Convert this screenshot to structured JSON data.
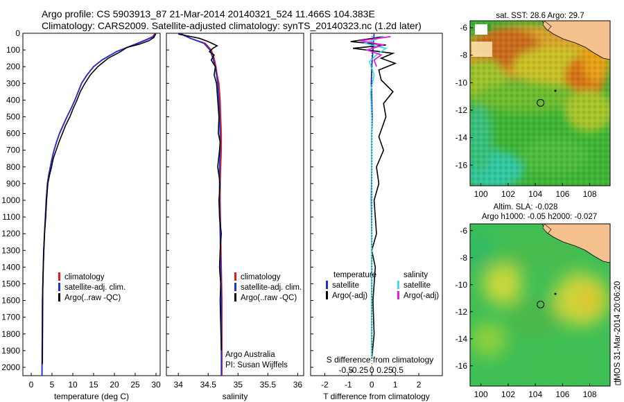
{
  "header": {
    "line1": "Argo profile: CS 5903913_87 21-Mar-2014 20140321_524 11.466S 104.383E",
    "line2": "Climatology: CARS2009. Satellite-adjusted climatology: synTS_20140323.nc (1.2d later)"
  },
  "side_stamp": "IMOS 31-Mar-2014 20:06:20",
  "colors": {
    "climatology": "#e41a1c",
    "satellite": "#1f2fd6",
    "argo": "#000000",
    "satellite_diff": "#3fe0e8",
    "argo_sal_diff": "#e020e0",
    "land": "#f5c28f"
  },
  "chart_data": [
    {
      "type": "line",
      "panel": "temperature",
      "xlabel": "temperature (deg C)",
      "ylabel": "",
      "xlim": [
        -2,
        31
      ],
      "ylim": [
        2050,
        0
      ],
      "xticks": [
        0,
        5,
        10,
        15,
        20,
        25,
        30
      ],
      "yticks": [
        0,
        100,
        200,
        300,
        400,
        500,
        600,
        700,
        800,
        900,
        1000,
        1100,
        1200,
        1300,
        1400,
        1500,
        1600,
        1700,
        1800,
        1900,
        2000
      ],
      "legend": [
        "climatology",
        "satellite-adj. clim.",
        "Argo(..raw -QC)"
      ],
      "legend_position": "lower-middle",
      "series": [
        {
          "name": "climatology",
          "color_key": "climatology",
          "x": [
            29.8,
            29.2,
            27.5,
            24.5,
            20.5,
            17,
            15,
            13.4,
            12.1,
            11.3,
            10.5,
            9.6,
            8.6,
            7.7,
            6.8,
            6.1,
            5.5,
            5.0,
            4.6,
            4.2,
            3.9,
            3.6,
            3.4,
            3.2,
            3.0,
            2.9,
            2.8,
            2.7,
            2.6
          ],
          "y": [
            0,
            20,
            40,
            70,
            110,
            160,
            200,
            250,
            300,
            350,
            400,
            450,
            500,
            550,
            600,
            650,
            700,
            750,
            800,
            850,
            900,
            1000,
            1100,
            1200,
            1300,
            1400,
            1500,
            1600,
            2050
          ]
        },
        {
          "name": "satellite-adj. clim.",
          "color_key": "satellite",
          "x": [
            30.0,
            29.4,
            27.7,
            24.6,
            20.5,
            17,
            15,
            13.4,
            12.1,
            11.3,
            10.5,
            9.6,
            8.6,
            7.7,
            6.8,
            6.1,
            5.5,
            5.0,
            4.6,
            4.2,
            3.9,
            3.6,
            3.4,
            3.2,
            3.0,
            2.9,
            2.8,
            2.7,
            2.6
          ],
          "y": [
            0,
            20,
            40,
            70,
            110,
            160,
            200,
            250,
            300,
            350,
            400,
            450,
            500,
            550,
            600,
            650,
            700,
            750,
            800,
            850,
            900,
            1000,
            1100,
            1200,
            1300,
            1400,
            1500,
            1600,
            2050
          ]
        },
        {
          "name": "Argo(..raw -QC)",
          "color_key": "argo",
          "x": [
            29.9,
            29.5,
            28.3,
            26.0,
            23.0,
            21.5,
            18.5,
            16,
            14.2,
            12.9,
            11.8,
            11.0,
            10.1,
            9.3,
            8.3,
            7.5,
            6.7,
            6.0,
            5.3,
            4.9,
            4.4,
            4.0,
            3.7,
            3.5,
            3.2,
            3.05,
            2.9,
            2.8,
            2.7
          ],
          "y": [
            5,
            25,
            45,
            65,
            85,
            110,
            150,
            200,
            250,
            300,
            350,
            400,
            450,
            500,
            550,
            600,
            650,
            700,
            750,
            800,
            850,
            900,
            1000,
            1100,
            1200,
            1300,
            1400,
            1500,
            1980
          ]
        }
      ]
    },
    {
      "type": "line",
      "panel": "salinity",
      "xlabel": "salinity",
      "ylabel": "",
      "xlim": [
        33.8,
        36.1
      ],
      "ylim": [
        2050,
        0
      ],
      "xticks": [
        34,
        34.5,
        35,
        35.5,
        36
      ],
      "legend": [
        "climatology",
        "satellite-adj. clim.",
        "Argo(..raw -QC)"
      ],
      "legend_position": "lower-middle",
      "annotations": [
        "Argo Australia",
        "PI: Susan Wijffels"
      ],
      "series": [
        {
          "name": "climatology",
          "color_key": "climatology",
          "x": [
            34.03,
            34.2,
            34.45,
            34.55,
            34.6,
            34.63,
            34.65,
            34.68,
            34.7,
            34.71,
            34.72,
            34.72,
            34.71,
            34.7,
            34.7,
            34.71,
            34.72,
            34.73,
            34.73,
            34.73
          ],
          "y": [
            0,
            30,
            60,
            100,
            150,
            200,
            250,
            300,
            400,
            500,
            600,
            700,
            800,
            900,
            1000,
            1200,
            1400,
            1600,
            1800,
            2050
          ]
        },
        {
          "name": "satellite-adj. clim.",
          "color_key": "satellite",
          "x": [
            34.02,
            34.2,
            34.43,
            34.53,
            34.58,
            34.62,
            34.64,
            34.66,
            34.68,
            34.69,
            34.7,
            34.7,
            34.69,
            34.69,
            34.69,
            34.7,
            34.71,
            34.72,
            34.72,
            34.72
          ],
          "y": [
            0,
            30,
            60,
            100,
            150,
            200,
            250,
            300,
            400,
            500,
            600,
            700,
            800,
            900,
            1000,
            1200,
            1400,
            1600,
            1800,
            2050
          ]
        },
        {
          "name": "Argo(..raw -QC)",
          "color_key": "argo",
          "x": [
            34.0,
            34.35,
            34.5,
            34.65,
            34.58,
            34.52,
            34.6,
            34.55,
            34.62,
            34.6,
            34.64,
            34.66,
            34.68,
            34.67,
            34.7,
            34.69,
            34.66,
            34.7,
            34.68,
            34.69,
            34.72,
            34.7,
            34.69,
            34.71,
            34.7,
            34.72
          ],
          "y": [
            5,
            30,
            50,
            75,
            90,
            110,
            130,
            160,
            200,
            250,
            300,
            400,
            500,
            600,
            650,
            700,
            800,
            900,
            1000,
            1100,
            1200,
            1300,
            1400,
            1500,
            1600,
            1900
          ]
        }
      ]
    },
    {
      "type": "line",
      "panel": "differences",
      "xlabel": "T difference from climatology",
      "xlabel_top": "S difference from climatology",
      "xlim": [
        -2.6,
        3.0
      ],
      "ylim": [
        2050,
        0
      ],
      "xticks": [
        -2,
        -1,
        0,
        1,
        2
      ],
      "s_ticks": [
        -0.5,
        -0.25,
        0,
        0.25,
        0.5
      ],
      "legend_left_title": "temperature",
      "legend_right_title": "salinity",
      "legend_left": [
        "satellite",
        "Argo(-adj)"
      ],
      "legend_right": [
        "satellite",
        "Argo(-adj)"
      ],
      "legend_position": "lower-middle",
      "series": [
        {
          "name": "temperature satellite",
          "color_key": "satellite",
          "x": [
            0.1,
            0.05,
            0,
            -0.02,
            0,
            0.02,
            0,
            0,
            -0.02,
            0,
            0,
            0
          ],
          "y": [
            0,
            100,
            200,
            300,
            400,
            500,
            600,
            800,
            1000,
            1200,
            1600,
            1950
          ]
        },
        {
          "name": "temperature Argo(-adj)",
          "color_key": "argo",
          "x": [
            0.5,
            -0.9,
            0.6,
            -0.8,
            0.9,
            0.4,
            1.0,
            0.3,
            0.4,
            0.9,
            0.5,
            0.6,
            0.3,
            0.5,
            0.2,
            0.3,
            0.1,
            0.2,
            0.0,
            0.15,
            0.05,
            0.1,
            0.0
          ],
          "y": [
            20,
            50,
            70,
            90,
            120,
            150,
            180,
            220,
            280,
            350,
            420,
            500,
            620,
            700,
            800,
            900,
            1000,
            1200,
            1300,
            1400,
            1600,
            1800,
            1950
          ]
        },
        {
          "name": "salinity satellite",
          "color_key": "satellite_diff",
          "x": [
            0.5,
            -0.3,
            0.6,
            0.2,
            -0.1,
            0.1,
            -0.05,
            0,
            0,
            0,
            0,
            0,
            0
          ],
          "y": [
            20,
            60,
            90,
            130,
            170,
            250,
            350,
            500,
            700,
            900,
            1200,
            1600,
            1950
          ]
        },
        {
          "name": "salinity Argo(-adj)",
          "color_key": "argo_sal_diff",
          "x": [
            0.8,
            -0.5,
            0.5,
            -0.2,
            0.4,
            0.1,
            0.2
          ],
          "y": [
            20,
            45,
            70,
            100,
            130,
            160,
            200
          ]
        }
      ]
    },
    {
      "type": "heatmap",
      "panel": "sst-map",
      "title": "sat. SST: 28.6  Argo: 29.7",
      "xlim": [
        99.2,
        109.5
      ],
      "ylim": [
        -17.5,
        -5.5
      ],
      "xticks": [
        100,
        102,
        104,
        106,
        108
      ],
      "yticks": [
        -6,
        -8,
        -10,
        -12,
        -14,
        -16
      ],
      "marker": {
        "lon": 104.383,
        "lat": -11.466
      }
    },
    {
      "type": "heatmap",
      "panel": "sla-map",
      "title_line1": "Altim. SLA: -0.028",
      "title_line2": "Argo h1000: -0.05 h2000: -0.027",
      "xlim": [
        99.2,
        109.5
      ],
      "ylim": [
        -17.5,
        -5.5
      ],
      "xticks": [
        100,
        102,
        104,
        106,
        108
      ],
      "yticks": [
        -6,
        -8,
        -10,
        -12,
        -14,
        -16
      ],
      "marker": {
        "lon": 104.383,
        "lat": -11.466
      }
    }
  ]
}
